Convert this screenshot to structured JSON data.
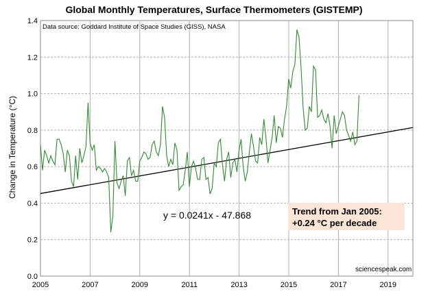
{
  "chart_data": {
    "type": "line",
    "title": "Global Monthly Temperatures, Surface Thermometers (GISTEMP)",
    "source_note": "Data source: Goddard Institute of Space Studies (GISS), NASA",
    "ylabel": "Change in Temperature  (°C)",
    "xlim": [
      2005,
      2020
    ],
    "ylim": [
      0.0,
      1.4
    ],
    "x_ticks": [
      "2005",
      "2007",
      "2009",
      "2011",
      "2013",
      "2015",
      "2017",
      "2019"
    ],
    "y_ticks": [
      "0.0",
      "0.2",
      "0.4",
      "0.6",
      "0.8",
      "1.0",
      "1.2",
      "1.4"
    ],
    "grid": true,
    "series": [
      {
        "color": "#2e8b2e",
        "x_start": 2005.0,
        "x_step": 0.0833,
        "values": [
          0.72,
          0.58,
          0.69,
          0.66,
          0.62,
          0.66,
          0.63,
          0.61,
          0.75,
          0.75,
          0.72,
          0.67,
          0.57,
          0.69,
          0.66,
          0.52,
          0.49,
          0.66,
          0.53,
          0.7,
          0.62,
          0.66,
          0.71,
          0.95,
          0.73,
          0.69,
          0.72,
          0.58,
          0.6,
          0.59,
          0.57,
          0.59,
          0.57,
          0.54,
          0.24,
          0.33,
          0.74,
          0.51,
          0.48,
          0.52,
          0.55,
          0.44,
          0.63,
          0.65,
          0.55,
          0.58,
          0.52,
          0.52,
          0.63,
          0.65,
          0.68,
          0.67,
          0.64,
          0.65,
          0.72,
          0.74,
          0.68,
          0.66,
          0.72,
          0.93,
          0.87,
          0.66,
          0.6,
          0.64,
          0.61,
          0.73,
          0.69,
          0.47,
          0.49,
          0.5,
          0.58,
          0.68,
          0.49,
          0.6,
          0.63,
          0.59,
          0.53,
          0.53,
          0.64,
          0.65,
          0.53,
          0.54,
          0.45,
          0.48,
          0.62,
          0.6,
          0.73,
          0.75,
          0.61,
          0.52,
          0.64,
          0.68,
          0.54,
          0.62,
          0.64,
          0.57,
          0.69,
          0.75,
          0.6,
          0.52,
          0.57,
          0.68,
          0.78,
          0.71,
          0.63,
          0.62,
          0.76,
          0.72,
          0.86,
          0.76,
          0.62,
          0.69,
          0.76,
          0.88,
          0.73,
          0.82,
          0.81,
          0.76,
          0.86,
          0.93,
          1.08,
          1.03,
          1.12,
          1.16,
          1.35,
          1.31,
          1.14,
          0.92,
          0.8,
          0.81,
          0.93,
          0.9,
          1.15,
          1.13,
          0.87,
          0.88,
          0.91,
          0.86,
          0.84,
          0.89,
          0.82,
          0.7,
          0.88,
          0.78,
          0.82,
          0.86,
          0.9,
          0.88,
          0.8,
          0.77,
          0.74,
          0.79,
          0.72,
          0.74,
          0.99
        ]
      }
    ],
    "trendline": {
      "slope": 0.0241,
      "intercept": -47.868,
      "x_range": [
        2005,
        2020
      ]
    },
    "equation_label": "y = 0.0241x - 47.868",
    "annotation": {
      "line1": "Trend from Jan 2005:",
      "line2": "+0.24 °C per decade",
      "background": "#fbe5d6"
    },
    "credit": "sciencespeak.com"
  }
}
